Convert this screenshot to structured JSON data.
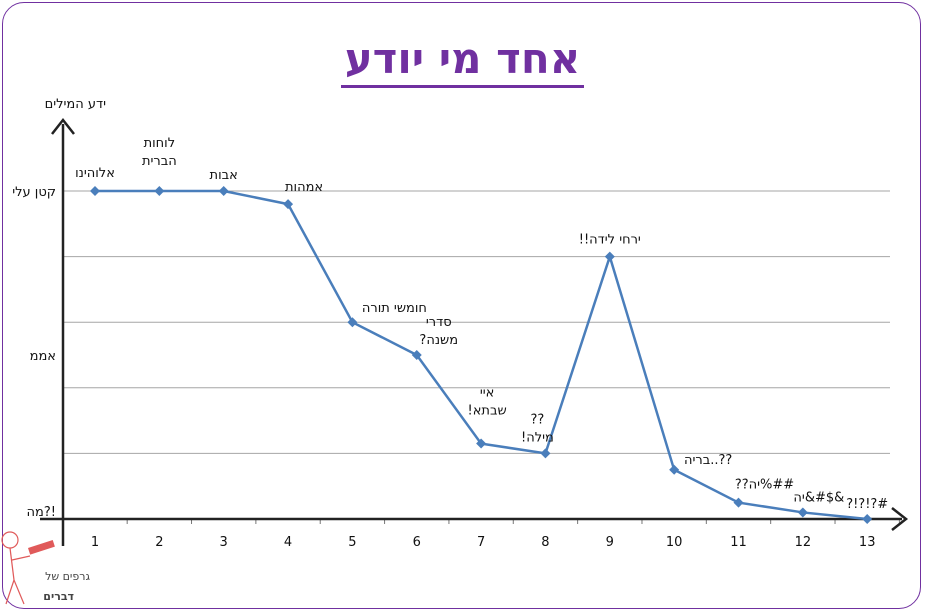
{
  "title": "אחד מי יודע",
  "chart_data": {
    "type": "line",
    "ylabel": "ידע המילים",
    "y_levels": [
      {
        "label": "קטן עלי",
        "value": 5
      },
      {
        "label": "אממ",
        "value": 2.5
      },
      {
        "label": "מה?!",
        "value": 0
      }
    ],
    "ylim": [
      0,
      5
    ],
    "grid": true,
    "x": [
      1,
      2,
      3,
      4,
      5,
      6,
      7,
      8,
      9,
      10,
      11,
      12,
      13
    ],
    "values": [
      5,
      5,
      5,
      4.8,
      3.0,
      2.5,
      1.15,
      1.0,
      4.0,
      0.75,
      0.25,
      0.1,
      0
    ],
    "point_labels": [
      [
        "אלוהינו"
      ],
      [
        "לוחות",
        "הברית"
      ],
      [
        "אבות"
      ],
      [
        "אמהות"
      ],
      [
        "חומשי תורה"
      ],
      [
        "סדרי",
        "משנה?"
      ],
      [
        "איי",
        "שבתא!"
      ],
      [
        "??",
        "מילה!"
      ],
      [
        "ירחי לידה!!"
      ],
      [
        "??..בריה"
      ],
      [
        "##%יה??"
      ],
      [
        "&$#&יה"
      ],
      [
        "#?!?!?"
      ]
    ],
    "color": "#4a7ebb"
  },
  "logo": {
    "text_line1": "גרפים של",
    "text_line2": "דברים"
  }
}
